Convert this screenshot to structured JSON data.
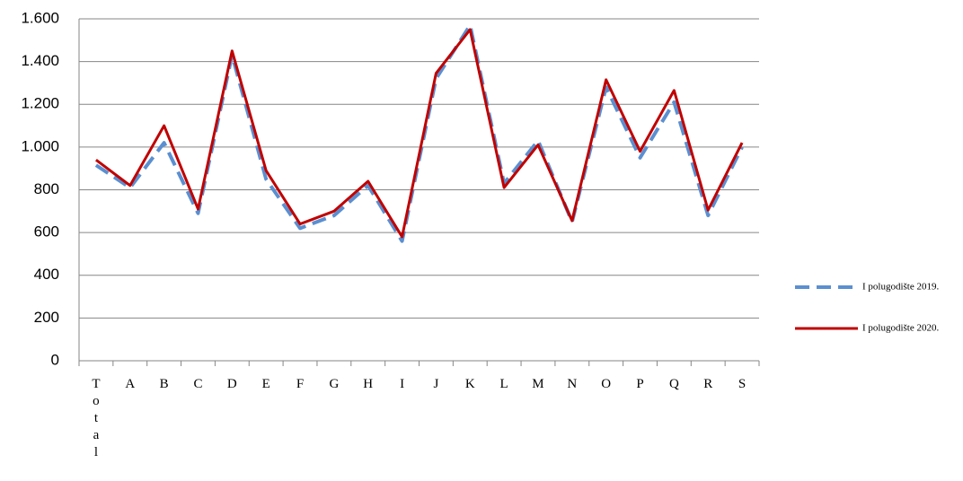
{
  "chart_data": {
    "type": "line",
    "categories": [
      "Total",
      "A",
      "B",
      "C",
      "D",
      "E",
      "F",
      "G",
      "H",
      "I",
      "J",
      "K",
      "L",
      "M",
      "N",
      "O",
      "P",
      "Q",
      "R",
      "S"
    ],
    "series": [
      {
        "name": "I polugodište 2019.",
        "color": "#5b8fd0",
        "dash": true,
        "values": [
          915,
          810,
          1020,
          690,
          1430,
          850,
          620,
          680,
          820,
          560,
          1320,
          1570,
          830,
          1030,
          650,
          1280,
          950,
          1210,
          680,
          1000
        ]
      },
      {
        "name": "I polugodište 2020.",
        "color": "#c00000",
        "dash": false,
        "values": [
          940,
          820,
          1100,
          710,
          1450,
          890,
          640,
          700,
          840,
          580,
          1345,
          1550,
          810,
          1010,
          655,
          1315,
          980,
          1265,
          705,
          1020
        ]
      }
    ],
    "ylim": [
      0,
      1600
    ],
    "yticks": [
      0,
      200,
      400,
      600,
      800,
      {
        "value": 1000,
        "label": "1.000"
      },
      {
        "value": 1200,
        "label": "1.200"
      },
      {
        "value": 1400,
        "label": "1.400"
      },
      {
        "value": 1600,
        "label": "1.600"
      }
    ],
    "grid": true,
    "legend": "right"
  }
}
